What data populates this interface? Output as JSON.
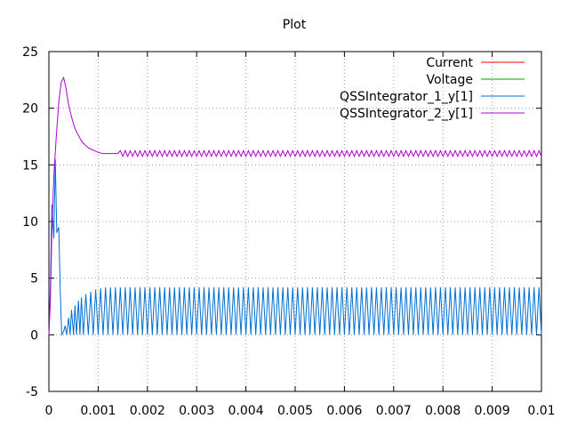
{
  "chart_data": {
    "type": "line",
    "title": "Plot",
    "xlabel": "",
    "ylabel": "",
    "xlim": [
      0,
      0.01
    ],
    "ylim": [
      -5,
      25
    ],
    "xticks": [
      0,
      0.001,
      0.002,
      0.003,
      0.004,
      0.005,
      0.006,
      0.007,
      0.008,
      0.009,
      0.01
    ],
    "xtick_labels": [
      "0",
      "0.001",
      "0.002",
      "0.003",
      "0.004",
      "0.005",
      "0.006",
      "0.007",
      "0.008",
      "0.009",
      "0.01"
    ],
    "yticks": [
      -5,
      0,
      5,
      10,
      15,
      20,
      25
    ],
    "ytick_labels": [
      "-5",
      "0",
      "5",
      "10",
      "15",
      "20",
      "25"
    ],
    "grid": true,
    "legend_position": "top-right",
    "series": [
      {
        "name": "Current",
        "color": "#ff0000",
        "x": [],
        "y": []
      },
      {
        "name": "Voltage",
        "color": "#00a000",
        "x": [],
        "y": []
      },
      {
        "name": "QSSIntegrator_1_y[1]",
        "color": "#0070d0",
        "description_values": {
          "steady_state_oscillation_min": 0,
          "steady_state_oscillation_max": 4.2,
          "oscillation_period": 0.0001
        },
        "x": [
          0,
          3e-05,
          6e-05,
          0.0001,
          0.00013,
          0.00016,
          0.0002,
          0.00023,
          0.00026,
          0.0003,
          0.00033,
          0.00036,
          0.0004,
          0.00043,
          0.00046,
          0.0005,
          0.00053,
          0.00056,
          0.0006,
          0.00063,
          0.00066,
          0.0007,
          0.00075,
          0.0008,
          0.00085,
          0.0009,
          0.00095,
          0.001,
          0.00105,
          0.0011,
          0.00115,
          0.0012,
          0.00125,
          0.0013,
          0.00135,
          0.0014
        ],
        "y": [
          0,
          4,
          11.5,
          8.5,
          15.5,
          9,
          9.5,
          4,
          0,
          0.3,
          0.8,
          0,
          1.5,
          0,
          2.2,
          0,
          2.6,
          0,
          3.0,
          0,
          3.3,
          0,
          3.6,
          0,
          3.8,
          0,
          4.0,
          0,
          4.1,
          0,
          4.2,
          0,
          4.2,
          0,
          4.2,
          0
        ]
      },
      {
        "name": "QSSIntegrator_2_y[1]",
        "color": "#b000d0",
        "x": [
          0,
          3e-05,
          6e-05,
          0.0001,
          0.00015,
          0.0002,
          0.00025,
          0.0003,
          0.00035,
          0.0004,
          0.00045,
          0.0005,
          0.00055,
          0.0006,
          0.00065,
          0.0007,
          0.00075,
          0.0008,
          0.00085,
          0.0009,
          0.00095,
          0.001,
          0.0011,
          0.0012,
          0.0013,
          0.0014
        ],
        "y": [
          0,
          3,
          9,
          14,
          17.5,
          20.5,
          22.3,
          22.7,
          21.7,
          20.3,
          19.4,
          18.6,
          18.0,
          17.6,
          17.2,
          16.9,
          16.7,
          16.5,
          16.4,
          16.3,
          16.2,
          16.1,
          16.0,
          16.0,
          16.0,
          16.0
        ],
        "steady_state_mean": 16.0,
        "steady_state_amplitude": 0.25,
        "oscillation_period": 0.0001
      }
    ]
  }
}
